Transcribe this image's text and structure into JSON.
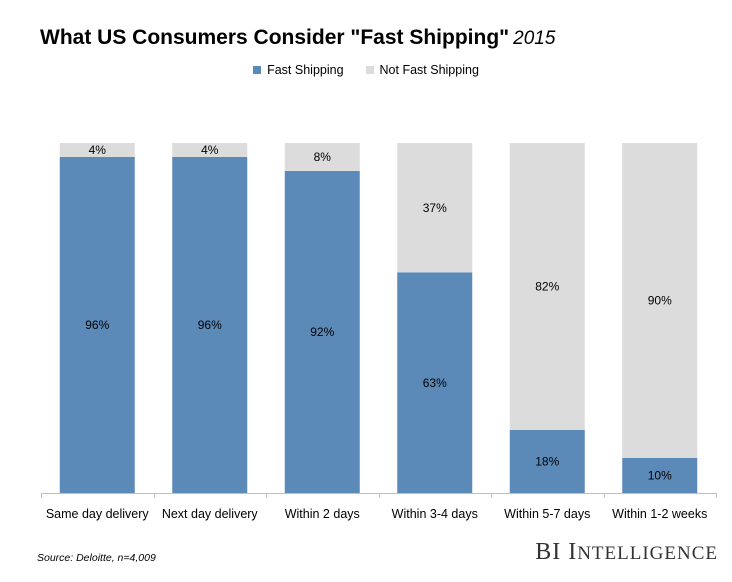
{
  "chart_data": {
    "type": "bar",
    "stacked": true,
    "title": "What US Consumers Consider \"Fast Shipping\"",
    "title_year": "2015",
    "categories": [
      "Same day delivery",
      "Next day delivery",
      "Within 2 days",
      "Within 3-4 days",
      "Within 5-7 days",
      "Within 1-2 weeks"
    ],
    "series": [
      {
        "name": "Fast Shipping",
        "values": [
          96,
          96,
          92,
          63,
          18,
          10
        ],
        "labels": [
          "96%",
          "96%",
          "92%",
          "63%",
          "18%",
          "10%"
        ],
        "color": "#5b89b8"
      },
      {
        "name": "Not Fast Shipping",
        "values": [
          4,
          4,
          8,
          37,
          82,
          90
        ],
        "labels": [
          "4%",
          "4%",
          "8%",
          "37%",
          "82%",
          "90%"
        ],
        "color": "#dcdcdc"
      }
    ],
    "ylim": [
      0,
      100
    ],
    "xlabel": "",
    "ylabel": "",
    "legend_position": "top-center",
    "source": "Source: Deloitte, n=4,009",
    "brand": "BI Intelligence"
  }
}
